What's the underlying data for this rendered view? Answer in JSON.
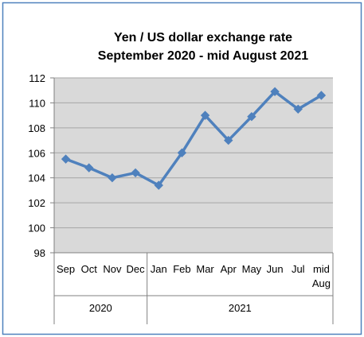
{
  "chart_data": {
    "type": "line",
    "title_line1": "Yen / US dollar exchange rate",
    "title_line2": "September 2020 - mid August 2021",
    "categories": [
      {
        "label_line1": "Sep",
        "label_line2": ""
      },
      {
        "label_line1": "Oct",
        "label_line2": ""
      },
      {
        "label_line1": "Nov",
        "label_line2": ""
      },
      {
        "label_line1": "Dec",
        "label_line2": ""
      },
      {
        "label_line1": "Jan",
        "label_line2": ""
      },
      {
        "label_line1": "Feb",
        "label_line2": ""
      },
      {
        "label_line1": "Mar",
        "label_line2": ""
      },
      {
        "label_line1": "Apr",
        "label_line2": ""
      },
      {
        "label_line1": "May",
        "label_line2": ""
      },
      {
        "label_line1": "Jun",
        "label_line2": ""
      },
      {
        "label_line1": "Jul",
        "label_line2": ""
      },
      {
        "label_line1": "mid",
        "label_line2": "Aug"
      }
    ],
    "year_groups": [
      {
        "label": "2020",
        "count": 4
      },
      {
        "label": "2021",
        "count": 8
      }
    ],
    "values": [
      105.5,
      104.8,
      104.0,
      104.4,
      103.4,
      106.0,
      109.0,
      107.0,
      108.9,
      110.9,
      109.5,
      110.6
    ],
    "ylim": [
      98,
      112
    ],
    "yticks": [
      "98",
      "100",
      "102",
      "104",
      "106",
      "108",
      "110",
      "112"
    ],
    "grid": true,
    "colors": {
      "line": "#4F81BD",
      "plot_area": "#D9D9D9",
      "grid": "#A6A6A6",
      "frame_border": "#4F81BD",
      "text": "#000000"
    }
  }
}
